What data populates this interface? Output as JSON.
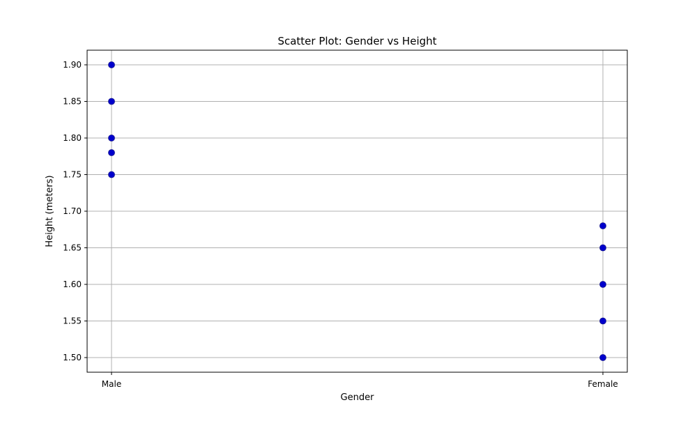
{
  "chart_data": {
    "type": "scatter",
    "title": "Scatter Plot: Gender vs Height",
    "xlabel": "Gender",
    "ylabel": "Height (meters)",
    "categories": [
      "Male",
      "Female"
    ],
    "points": [
      {
        "x": "Male",
        "y": 1.75
      },
      {
        "x": "Male",
        "y": 1.78
      },
      {
        "x": "Male",
        "y": 1.8
      },
      {
        "x": "Male",
        "y": 1.85
      },
      {
        "x": "Male",
        "y": 1.9
      },
      {
        "x": "Female",
        "y": 1.5
      },
      {
        "x": "Female",
        "y": 1.55
      },
      {
        "x": "Female",
        "y": 1.6
      },
      {
        "x": "Female",
        "y": 1.65
      },
      {
        "x": "Female",
        "y": 1.68
      }
    ],
    "ylim": [
      1.48,
      1.92
    ],
    "yticks": [
      "1.50",
      "1.55",
      "1.60",
      "1.65",
      "1.70",
      "1.75",
      "1.80",
      "1.85",
      "1.90"
    ],
    "grid": true,
    "colors": {
      "point_fill": "#0000cc",
      "point_stroke": "#1a1a8c",
      "grid": "#b0b0b0",
      "axis": "#000000"
    }
  }
}
